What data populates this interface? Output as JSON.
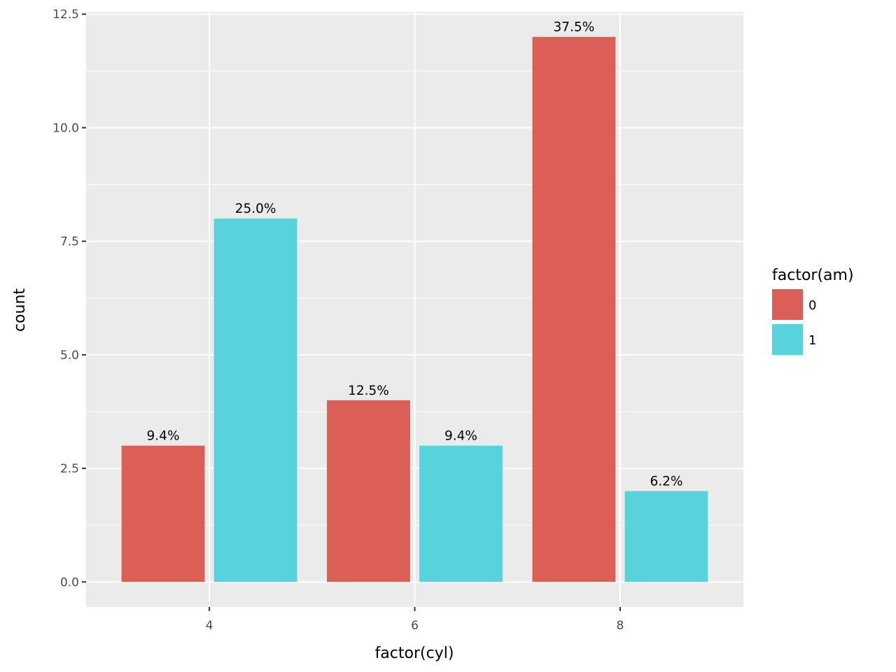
{
  "chart_data": {
    "type": "bar",
    "xlabel": "factor(cyl)",
    "ylabel": "count",
    "categories": [
      "4",
      "6",
      "8"
    ],
    "ylim": [
      -0.55,
      12.55
    ],
    "yticks": [
      0,
      2.5,
      5,
      7.5,
      10,
      12.5
    ],
    "ytick_labels": [
      "0.0",
      "2.5",
      "5.0",
      "7.5",
      "10.0",
      "12.5"
    ],
    "grid": true,
    "legend": {
      "title": "factor(am)",
      "position": "right",
      "entries": [
        "0",
        "1"
      ]
    },
    "series": [
      {
        "name": "0",
        "color": "#DB5F57",
        "values": [
          3,
          4,
          12
        ],
        "labels": [
          "9.4%",
          "12.5%",
          "37.5%"
        ]
      },
      {
        "name": "1",
        "color": "#58D3DB",
        "values": [
          8,
          3,
          2
        ],
        "labels": [
          "25.0%",
          "9.4%",
          "6.2%"
        ]
      }
    ]
  }
}
